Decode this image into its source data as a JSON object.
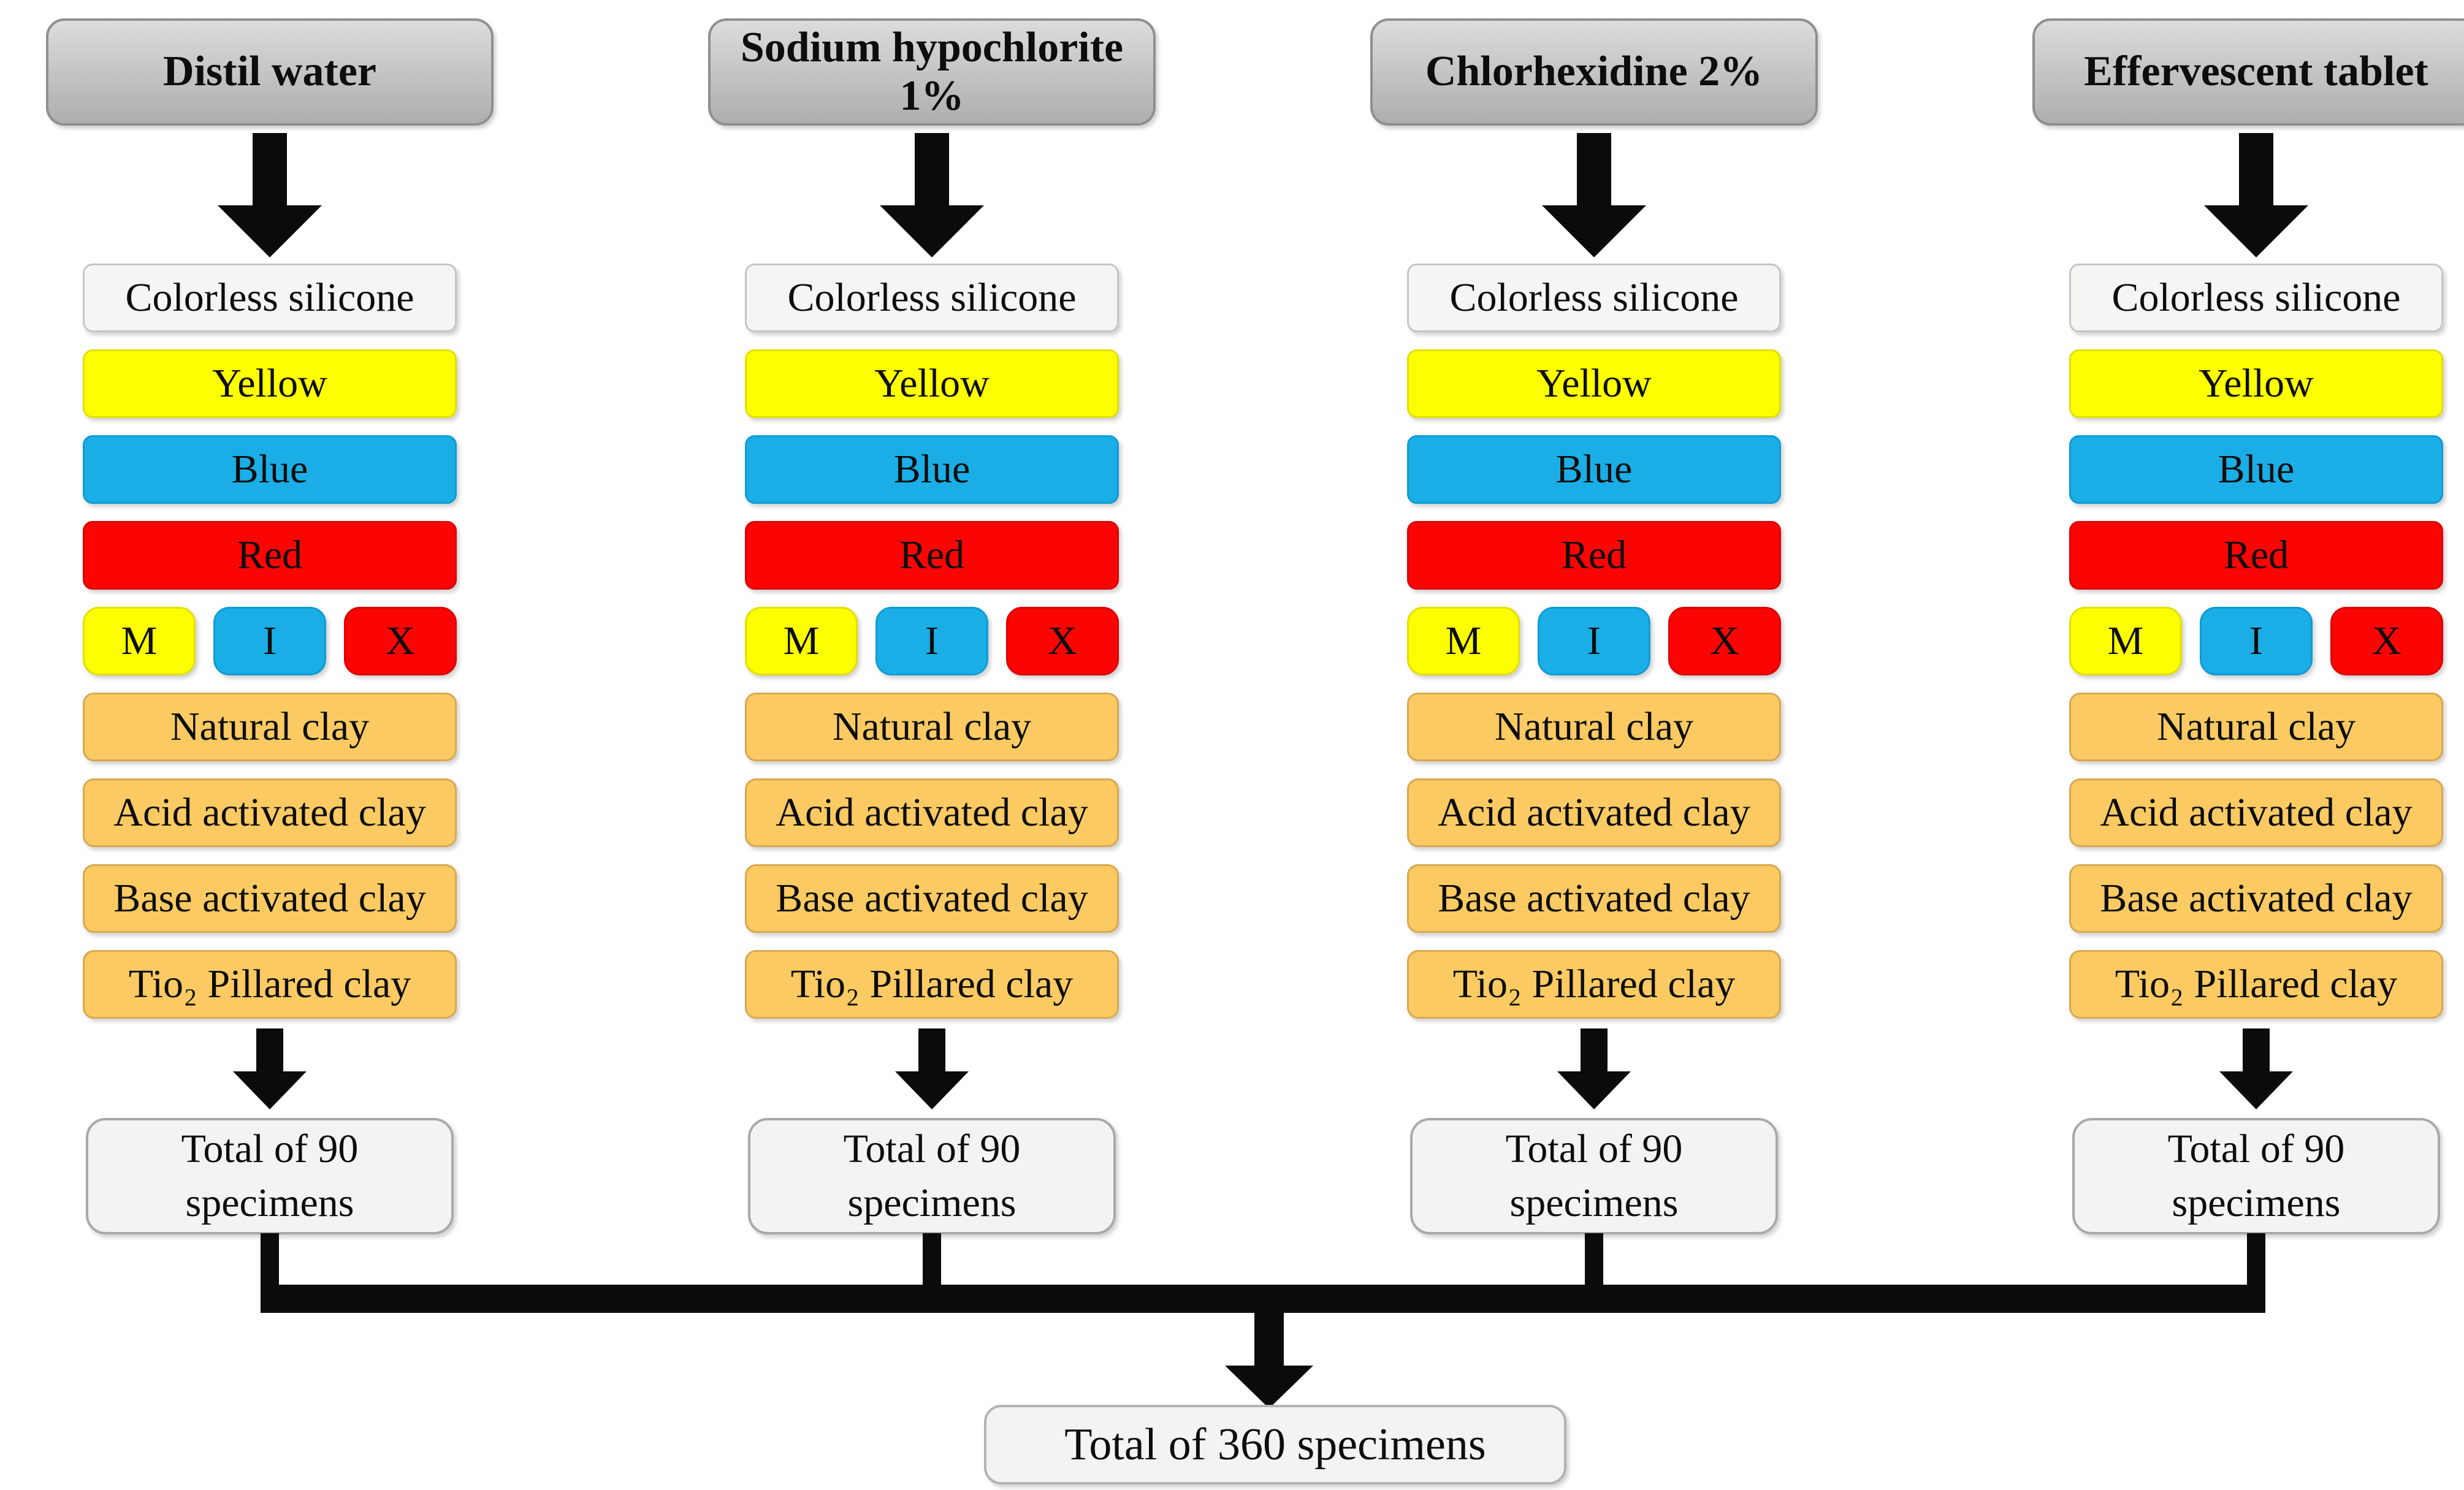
{
  "palette": {
    "header_gray": "#c7c7c7",
    "header_border": "#8f8f8f",
    "yellow": "#fdff00",
    "blue": "#1baee6",
    "red": "#fa0404",
    "clay_orange": "#fbca62",
    "light_box": "#f3f3f3",
    "connector_black": "#0b0b0b"
  },
  "columns": [
    {
      "header": "Distil water",
      "silicone": "Colorless silicone",
      "color_yellow": "Yellow",
      "color_blue": "Blue",
      "color_red": "Red",
      "mix_m": "M",
      "mix_i": "I",
      "mix_x": "X",
      "clay_natural": "Natural clay",
      "clay_acid": "Acid activated clay",
      "clay_base": "Base activated clay",
      "clay_tio2": "Tio₂ Pillared clay",
      "total_line1": "Total of 90",
      "total_line2": "specimens"
    },
    {
      "header": "Sodium hypochlorite 1%",
      "silicone": "Colorless silicone",
      "color_yellow": "Yellow",
      "color_blue": "Blue",
      "color_red": "Red",
      "mix_m": "M",
      "mix_i": "I",
      "mix_x": "X",
      "clay_natural": "Natural clay",
      "clay_acid": "Acid activated clay",
      "clay_base": "Base activated clay",
      "clay_tio2": "Tio₂ Pillared clay",
      "total_line1": "Total of 90",
      "total_line2": "specimens"
    },
    {
      "header": "Chlorhexidine 2%",
      "silicone": "Colorless silicone",
      "color_yellow": "Yellow",
      "color_blue": "Blue",
      "color_red": "Red",
      "mix_m": "M",
      "mix_i": "I",
      "mix_x": "X",
      "clay_natural": "Natural clay",
      "clay_acid": "Acid activated clay",
      "clay_base": "Base activated clay",
      "clay_tio2": "Tio₂ Pillared clay",
      "total_line1": "Total of 90",
      "total_line2": "specimens"
    },
    {
      "header": "Effervescent tablet",
      "silicone": "Colorless silicone",
      "color_yellow": "Yellow",
      "color_blue": "Blue",
      "color_red": "Red",
      "mix_m": "M",
      "mix_i": "I",
      "mix_x": "X",
      "clay_natural": "Natural clay",
      "clay_acid": "Acid activated clay",
      "clay_base": "Base activated clay",
      "clay_tio2": "Tio₂ Pillared clay",
      "total_line1": "Total of 90",
      "total_line2": "specimens"
    }
  ],
  "footer": {
    "grand_total": "Total of 360 specimens"
  }
}
